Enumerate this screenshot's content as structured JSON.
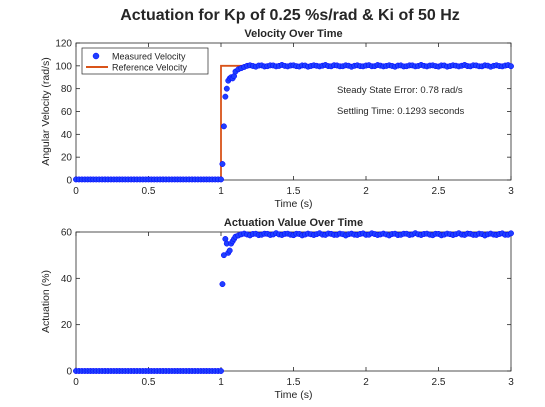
{
  "figure": {
    "title": "Actuation for Kp of 0.25 %s/rad & Ki of 50 Hz"
  },
  "colors": {
    "measured": "#0000ff",
    "measured_fill": "#1f3fff",
    "reference": "#d95319",
    "axis": "#262626",
    "tick": "#262626"
  },
  "chart_data": [
    {
      "type": "scatter",
      "id": "velocity",
      "title": "Velocity Over Time",
      "xlabel": "Time (s)",
      "ylabel": "Angular Velocity (rad/s)",
      "xlim": [
        0,
        3
      ],
      "ylim": [
        0,
        120
      ],
      "xticks": [
        0,
        0.5,
        1,
        1.5,
        2,
        2.5,
        3
      ],
      "xtick_labels": [
        "0",
        "0.5",
        "1",
        "1.5",
        "2",
        "2.5",
        "3"
      ],
      "yticks": [
        0,
        20,
        40,
        60,
        80,
        100,
        120
      ],
      "ytick_labels": [
        "0",
        "20",
        "40",
        "60",
        "80",
        "100",
        "120"
      ],
      "legend": {
        "location": "top-left",
        "entries": [
          "Measured Velocity",
          "Reference Velocity"
        ]
      },
      "annotations": [
        "Steady State Error: 0.78 rad/s",
        "Settling Time: 0.1293 seconds"
      ],
      "series": [
        {
          "name": "Measured Velocity",
          "kind": "markers",
          "sample_step": 0.02,
          "pre_step_value": 0.5,
          "transient_x": [
            1.01,
            1.02,
            1.03,
            1.04,
            1.05,
            1.06,
            1.07,
            1.08,
            1.09,
            1.1,
            1.12,
            1.14,
            1.16
          ],
          "transient_y": [
            14,
            47,
            73,
            80,
            87,
            89,
            90,
            89,
            91,
            95,
            97,
            98,
            99
          ],
          "steady_value": 100,
          "steady_ripple": 0.8
        },
        {
          "name": "Reference Velocity",
          "kind": "line",
          "x": [
            0,
            1,
            1,
            1.1,
            3
          ],
          "y": [
            0,
            0,
            100,
            100,
            100
          ]
        }
      ]
    },
    {
      "type": "scatter",
      "id": "actuation",
      "title": "Actuation Value Over Time",
      "xlabel": "Time (s)",
      "ylabel": "Actuation (%)",
      "xlim": [
        0,
        3
      ],
      "ylim": [
        0,
        60
      ],
      "xticks": [
        0,
        0.5,
        1,
        1.5,
        2,
        2.5,
        3
      ],
      "xtick_labels": [
        "0",
        "0.5",
        "1",
        "1.5",
        "2",
        "2.5",
        "3"
      ],
      "yticks": [
        0,
        20,
        40,
        60
      ],
      "ytick_labels": [
        "0",
        "20",
        "40",
        "60"
      ],
      "series": [
        {
          "name": "Actuation",
          "kind": "markers",
          "sample_step": 0.02,
          "pre_step_value": 0,
          "transient_x": [
            1.01,
            1.02,
            1.03,
            1.04,
            1.05,
            1.06,
            1.07,
            1.08,
            1.09,
            1.1,
            1.12
          ],
          "transient_y": [
            37.5,
            50,
            57,
            55,
            51,
            52,
            55,
            56,
            57,
            58,
            58.5
          ],
          "steady_value": 59,
          "steady_ripple": 0.5
        }
      ]
    }
  ]
}
